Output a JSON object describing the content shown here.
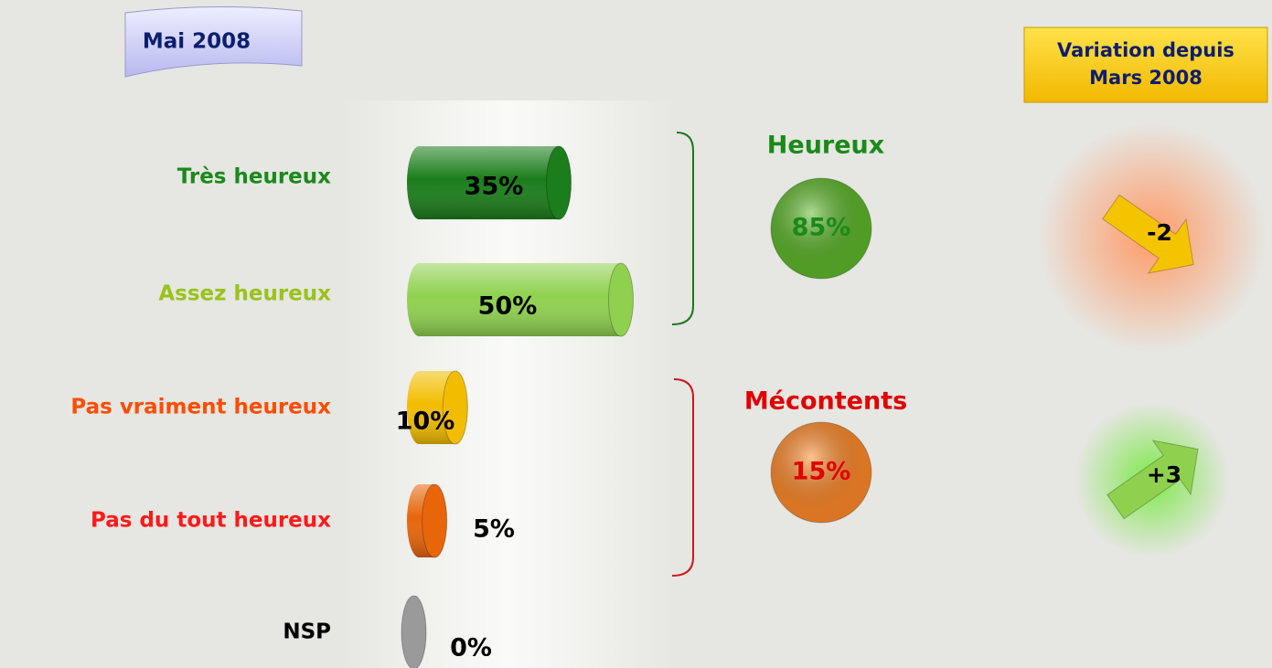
{
  "chart_data": {
    "type": "bar",
    "orientation": "horizontal",
    "title": "Mai 2008",
    "categories": [
      "Très heureux",
      "Assez heureux",
      "Pas vraiment heureux",
      "Pas du tout heureux",
      "NSP"
    ],
    "category_colors": [
      "#1a8a1a",
      "#99c31a",
      "#ff4d00",
      "#ff1a1a",
      "#000000"
    ],
    "values": [
      35,
      50,
      10,
      5,
      0
    ],
    "value_labels": [
      "35%",
      "50%",
      "10%",
      "5%",
      "0%"
    ],
    "colors": [
      "#1b7d1b",
      "#8fd14f",
      "#f2bd00",
      "#e8650a",
      "#9a9a9a"
    ],
    "groups": [
      {
        "name": "Heureux",
        "value": 85,
        "value_label": "85%",
        "color": "#5fb82c",
        "text_color": "#1a8a1a"
      },
      {
        "name": "Mécontents",
        "value": 15,
        "value_label": "15%",
        "color": "#ff8a2a",
        "text_color": "#e00000"
      }
    ],
    "variation": {
      "title": "Variation depuis Mars 2008",
      "values": [
        -2,
        3
      ],
      "value_labels": [
        "-2",
        "+3"
      ],
      "colors": [
        "#ff9a66",
        "#7ee84a"
      ]
    }
  }
}
